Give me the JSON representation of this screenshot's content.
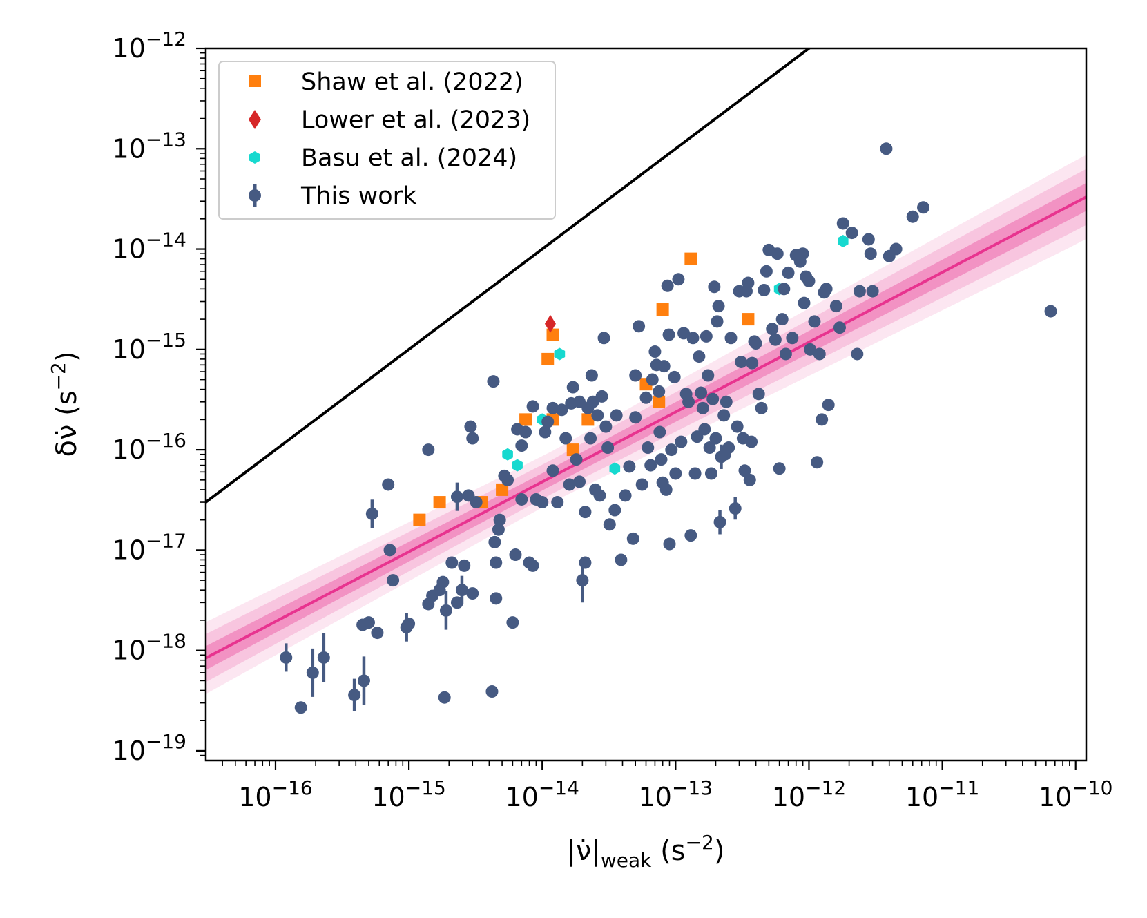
{
  "chart_data": {
    "type": "scatter",
    "title": "",
    "xlabel": "|ν̇|",
    "xlabel_sub": "weak",
    "xlabel_unit": " (s",
    "ylabel": "δν̇ (s",
    "unit_exp": "−2",
    "unit_close": ")",
    "xscale": "log",
    "yscale": "log",
    "xlim": [
      3e-17,
      1.2e-10
    ],
    "ylim": [
      8e-20,
      1e-12
    ],
    "grid": false,
    "legend_placement": "upper-left",
    "x_ticks": [
      {
        "base": "10",
        "exp": "−16",
        "value": 1e-16
      },
      {
        "base": "10",
        "exp": "−15",
        "value": 1e-15
      },
      {
        "base": "10",
        "exp": "−14",
        "value": 1e-14
      },
      {
        "base": "10",
        "exp": "−13",
        "value": 1e-13
      },
      {
        "base": "10",
        "exp": "−12",
        "value": 1e-12
      },
      {
        "base": "10",
        "exp": "−11",
        "value": 1e-11
      },
      {
        "base": "10",
        "exp": "−10",
        "value": 1e-10
      }
    ],
    "y_ticks": [
      {
        "base": "10",
        "exp": "−19",
        "value": 1e-19
      },
      {
        "base": "10",
        "exp": "−18",
        "value": 1e-18
      },
      {
        "base": "10",
        "exp": "−17",
        "value": 1e-17
      },
      {
        "base": "10",
        "exp": "−16",
        "value": 1e-16
      },
      {
        "base": "10",
        "exp": "−15",
        "value": 1e-15
      },
      {
        "base": "10",
        "exp": "−14",
        "value": 1e-14
      },
      {
        "base": "10",
        "exp": "−13",
        "value": 1e-13
      },
      {
        "base": "10",
        "exp": "−12",
        "value": 1e-12
      }
    ],
    "reference_line": {
      "description": "y = x",
      "color": "#000000"
    },
    "fit_line": {
      "color": "#e8338f",
      "log_slope": 0.696,
      "log_intercept_at_x_1e-14": -16.32,
      "band_sigma_dex": 0.14
    },
    "series": [
      {
        "name": "Shaw et al. (2022)",
        "marker": "square",
        "color": "#ff7f0e",
        "points": [
          [
            1.2e-15,
            2e-17
          ],
          [
            1.7e-15,
            3e-17
          ],
          [
            3.5e-15,
            3e-17
          ],
          [
            5e-15,
            4e-17
          ],
          [
            7.5e-15,
            2e-16
          ],
          [
            1.1e-14,
            8e-16
          ],
          [
            1.2e-14,
            1.4e-15
          ],
          [
            1.2e-14,
            2e-16
          ],
          [
            1.7e-14,
            1e-16
          ],
          [
            2.2e-14,
            2e-16
          ],
          [
            6e-14,
            4.5e-16
          ],
          [
            7.5e-14,
            3e-16
          ],
          [
            8e-14,
            2.5e-15
          ],
          [
            1.3e-13,
            8e-15
          ],
          [
            3.5e-13,
            2e-15
          ]
        ]
      },
      {
        "name": "Lower et al. (2023)",
        "marker": "diamond",
        "color": "#d62728",
        "points": [
          [
            1.15e-14,
            1.8e-15
          ]
        ]
      },
      {
        "name": "Basu et al. (2024)",
        "marker": "hexagon",
        "color": "#17d9cf",
        "points": [
          [
            5.5e-15,
            9e-17
          ],
          [
            6.5e-15,
            7e-17
          ],
          [
            1e-14,
            2e-16
          ],
          [
            1.35e-14,
            9e-16
          ],
          [
            3.5e-14,
            6.5e-17
          ],
          [
            6e-13,
            4e-15
          ],
          [
            1.8e-12,
            1.2e-14
          ]
        ]
      },
      {
        "name": "This work",
        "marker": "circle",
        "color": "#465a82",
        "points": [
          [
            1.2e-16,
            8.5e-19,
            0.1
          ],
          [
            1.55e-16,
            2.7e-19,
            0
          ],
          [
            1.9e-16,
            6e-19,
            0.2
          ],
          [
            2.3e-16,
            8.5e-19,
            0.2
          ],
          [
            3.9e-16,
            3.6e-19,
            0.12
          ],
          [
            4.6e-16,
            5e-19,
            0.2
          ],
          [
            4.5e-16,
            1.8e-18,
            0
          ],
          [
            5e-16,
            1.9e-18,
            0
          ],
          [
            5.3e-16,
            2.3e-17,
            0.1
          ],
          [
            5.8e-16,
            1.5e-18,
            0
          ],
          [
            7e-16,
            4.5e-17,
            0
          ],
          [
            7.2e-16,
            1e-17,
            0
          ],
          [
            7.6e-16,
            5e-18,
            0
          ],
          [
            9.6e-16,
            1.7e-18,
            0.1
          ],
          [
            1e-15,
            1.85e-18,
            0
          ],
          [
            1.4e-15,
            1e-16,
            0
          ],
          [
            1.4e-15,
            2.9e-18,
            0
          ],
          [
            1.5e-15,
            3.5e-18,
            0
          ],
          [
            1.7e-15,
            4e-18,
            0
          ],
          [
            1.8e-15,
            4.8e-18,
            0
          ],
          [
            1.9e-15,
            2.5e-18,
            0.15
          ],
          [
            1.85e-15,
            3.4e-19,
            0
          ],
          [
            2.1e-15,
            7.5e-18,
            0
          ],
          [
            2.3e-15,
            3e-18,
            0
          ],
          [
            2.5e-15,
            4e-18,
            0.1
          ],
          [
            2.6e-15,
            7e-18,
            0
          ],
          [
            2.3e-15,
            3.4e-17,
            0.1
          ],
          [
            2.8e-15,
            3.5e-17,
            0
          ],
          [
            2.9e-15,
            1.7e-16,
            0
          ],
          [
            3e-15,
            1.3e-16,
            0
          ],
          [
            3e-15,
            3.7e-18,
            0
          ],
          [
            3.2e-15,
            3e-17,
            0
          ],
          [
            4.2e-15,
            3.9e-19,
            0
          ],
          [
            4.3e-15,
            4.8e-16,
            0
          ],
          [
            4.4e-15,
            1.2e-17,
            0
          ],
          [
            4.5e-15,
            7.5e-18,
            0
          ],
          [
            4.5e-15,
            3.3e-18,
            0
          ],
          [
            4.7e-15,
            1.6e-17,
            0
          ],
          [
            4.8e-15,
            2e-17,
            0
          ],
          [
            5.2e-15,
            5.5e-17,
            0
          ],
          [
            5.5e-15,
            5e-17,
            0
          ],
          [
            6e-15,
            1.9e-18,
            0
          ],
          [
            6.3e-15,
            9e-18,
            0
          ],
          [
            6.5e-15,
            1.6e-16,
            0
          ],
          [
            7e-15,
            3.2e-17,
            0
          ],
          [
            7e-15,
            1.1e-16,
            0
          ],
          [
            7.5e-15,
            1.5e-16,
            0
          ],
          [
            8e-15,
            7.5e-18,
            0
          ],
          [
            8.5e-15,
            7e-18,
            0
          ],
          [
            8.5e-15,
            2.7e-16,
            0
          ],
          [
            9e-15,
            3.2e-17,
            0
          ],
          [
            1e-14,
            3e-17,
            0
          ],
          [
            1.05e-14,
            1.5e-16,
            0
          ],
          [
            1.1e-14,
            1.9e-16,
            0
          ],
          [
            1.2e-14,
            2.6e-16,
            0
          ],
          [
            1.2e-14,
            6.2e-17,
            0
          ],
          [
            1.3e-14,
            3e-17,
            0
          ],
          [
            1.4e-14,
            2.5e-16,
            0
          ],
          [
            1.5e-14,
            1.3e-16,
            0
          ],
          [
            1.6e-14,
            4.5e-17,
            0
          ],
          [
            1.65e-14,
            2.9e-16,
            0
          ],
          [
            1.7e-14,
            4.2e-16,
            0
          ],
          [
            1.8e-14,
            8e-17,
            0
          ],
          [
            1.9e-14,
            4.8e-17,
            0
          ],
          [
            1.9e-14,
            3e-16,
            0
          ],
          [
            2e-14,
            5e-18,
            0.18
          ],
          [
            2.1e-14,
            2.4e-17,
            0
          ],
          [
            2.1e-14,
            7.5e-18,
            0
          ],
          [
            2.2e-14,
            2.6e-16,
            0
          ],
          [
            2.3e-14,
            1.3e-16,
            0
          ],
          [
            2.35e-14,
            5.5e-16,
            0
          ],
          [
            2.4e-14,
            3e-16,
            0
          ],
          [
            2.5e-14,
            4e-17,
            0
          ],
          [
            2.6e-14,
            2.2e-16,
            0
          ],
          [
            2.7e-14,
            3.5e-17,
            0
          ],
          [
            2.8e-14,
            3.4e-16,
            0
          ],
          [
            2.9e-14,
            1.3e-15,
            0
          ],
          [
            3e-14,
            1.7e-16,
            0
          ],
          [
            3.1e-14,
            1.05e-16,
            0
          ],
          [
            3.2e-14,
            1.8e-17,
            0
          ],
          [
            3.5e-14,
            2.5e-17,
            0
          ],
          [
            3.6e-14,
            2.2e-16,
            0
          ],
          [
            3.9e-14,
            8e-18,
            0
          ],
          [
            4.2e-14,
            3.5e-17,
            0
          ],
          [
            4.5e-14,
            6.8e-17,
            0
          ],
          [
            4.8e-14,
            1.3e-17,
            0
          ],
          [
            5e-14,
            5.5e-16,
            0
          ],
          [
            5e-14,
            2.1e-16,
            0
          ],
          [
            5.3e-14,
            1.7e-15,
            0
          ],
          [
            5.6e-14,
            4.5e-17,
            0
          ],
          [
            6e-14,
            3.3e-16,
            0
          ],
          [
            6.2e-14,
            1.05e-16,
            0
          ],
          [
            6.5e-14,
            7e-17,
            0
          ],
          [
            6.7e-14,
            5e-16,
            0
          ],
          [
            7e-14,
            9.5e-16,
            0
          ],
          [
            7.2e-14,
            7e-16,
            0
          ],
          [
            7.5e-14,
            3.8e-16,
            0
          ],
          [
            7.6e-14,
            1.5e-16,
            0
          ],
          [
            7.8e-14,
            8e-17,
            0
          ],
          [
            8e-14,
            4.7e-17,
            0
          ],
          [
            8.2e-14,
            6.8e-16,
            0
          ],
          [
            8.5e-14,
            4e-17,
            0
          ],
          [
            8.7e-14,
            4.3e-15,
            0
          ],
          [
            8.9e-14,
            1.4e-15,
            0
          ],
          [
            9e-14,
            1.15e-17,
            0
          ],
          [
            9.3e-14,
            1e-16,
            0
          ],
          [
            9.8e-14,
            5.3e-16,
            0
          ],
          [
            1e-13,
            5.8e-17,
            0
          ],
          [
            1.05e-13,
            5e-15,
            0
          ],
          [
            1.1e-13,
            1.2e-16,
            0
          ],
          [
            1.15e-13,
            1.45e-15,
            0
          ],
          [
            1.2e-13,
            3.6e-16,
            0
          ],
          [
            1.25e-13,
            3e-16,
            0
          ],
          [
            1.3e-13,
            1.4e-17,
            0
          ],
          [
            1.35e-13,
            1.3e-15,
            0
          ],
          [
            1.4e-13,
            5.8e-17,
            0
          ],
          [
            1.45e-13,
            1.35e-16,
            0
          ],
          [
            1.5e-13,
            8.5e-16,
            0
          ],
          [
            1.55e-13,
            3.7e-16,
            0
          ],
          [
            1.6e-13,
            2.6e-16,
            0
          ],
          [
            1.65e-13,
            1.6e-16,
            0
          ],
          [
            1.7e-13,
            1.35e-15,
            0
          ],
          [
            1.75e-13,
            5.5e-16,
            0
          ],
          [
            1.8e-13,
            1.05e-16,
            0
          ],
          [
            1.85e-13,
            5.8e-17,
            0
          ],
          [
            1.9e-13,
            3.2e-16,
            0
          ],
          [
            1.95e-13,
            4.2e-15,
            0
          ],
          [
            2e-13,
            1.3e-16,
            0
          ],
          [
            2.05e-13,
            1.9e-15,
            0
          ],
          [
            2.1e-13,
            2.7e-15,
            0
          ],
          [
            2.15e-13,
            1.9e-17,
            0.08
          ],
          [
            2.2e-13,
            8.5e-17,
            0.08
          ],
          [
            2.3e-13,
            2.2e-16,
            0
          ],
          [
            2.35e-13,
            9e-17,
            0
          ],
          [
            2.4e-13,
            3e-16,
            0
          ],
          [
            2.5e-13,
            1.05e-16,
            0
          ],
          [
            2.6e-13,
            1.3e-15,
            0
          ],
          [
            2.8e-13,
            2.6e-17,
            0.07
          ],
          [
            2.9e-13,
            1.7e-16,
            0
          ],
          [
            3e-13,
            3.8e-15,
            0
          ],
          [
            3.1e-13,
            7.5e-16,
            0
          ],
          [
            3.2e-13,
            1.3e-16,
            0
          ],
          [
            3.3e-13,
            6.2e-17,
            0
          ],
          [
            3.4e-13,
            3.8e-15,
            0
          ],
          [
            3.5e-13,
            4.6e-15,
            0
          ],
          [
            3.6e-13,
            5e-17,
            0
          ],
          [
            3.7e-13,
            1.2e-16,
            0
          ],
          [
            3.75e-13,
            7.3e-16,
            0
          ],
          [
            3.9e-13,
            1.2e-15,
            0
          ],
          [
            4e-13,
            1.15e-15,
            0
          ],
          [
            4.2e-13,
            3.6e-16,
            0
          ],
          [
            4.4e-13,
            2.6e-16,
            0
          ],
          [
            4.6e-13,
            3.9e-15,
            0
          ],
          [
            4.8e-13,
            6e-15,
            0
          ],
          [
            5e-13,
            9.8e-15,
            0
          ],
          [
            5.3e-13,
            1.6e-15,
            0
          ],
          [
            5.6e-13,
            1.25e-15,
            0
          ],
          [
            5.8e-13,
            9e-15,
            0
          ],
          [
            6e-13,
            6.5e-17,
            0
          ],
          [
            6.3e-13,
            2e-15,
            0
          ],
          [
            6.5e-13,
            4e-15,
            0
          ],
          [
            6.7e-13,
            9e-16,
            0
          ],
          [
            7e-13,
            5.8e-15,
            0
          ],
          [
            7.5e-13,
            1.3e-15,
            0
          ],
          [
            8e-13,
            8.7e-15,
            0
          ],
          [
            8.6e-13,
            7.5e-15,
            0
          ],
          [
            9e-13,
            9e-15,
            0
          ],
          [
            9.2e-13,
            2.9e-15,
            0
          ],
          [
            9.5e-13,
            5.3e-15,
            0
          ],
          [
            1e-12,
            4.8e-15,
            0
          ],
          [
            1.02e-12,
            1e-15,
            0
          ],
          [
            1.1e-12,
            1.9e-15,
            0
          ],
          [
            1.15e-12,
            7.5e-17,
            0
          ],
          [
            1.2e-12,
            9e-16,
            0
          ],
          [
            1.25e-12,
            2e-16,
            0
          ],
          [
            1.3e-12,
            3.7e-15,
            0
          ],
          [
            1.35e-12,
            4e-15,
            0
          ],
          [
            1.4e-12,
            2.8e-16,
            0
          ],
          [
            1.6e-12,
            2.7e-15,
            0
          ],
          [
            1.7e-12,
            1.65e-15,
            0
          ],
          [
            1.8e-12,
            1.8e-14,
            0
          ],
          [
            2.1e-12,
            1.45e-14,
            0
          ],
          [
            2.3e-12,
            9e-16,
            0
          ],
          [
            2.4e-12,
            3.8e-15,
            0
          ],
          [
            2.8e-12,
            1.25e-14,
            0
          ],
          [
            2.9e-12,
            9e-15,
            0
          ],
          [
            3e-12,
            3.8e-15,
            0
          ],
          [
            3.8e-12,
            1e-13,
            0
          ],
          [
            4e-12,
            8.5e-15,
            0
          ],
          [
            4.5e-12,
            1e-14,
            0
          ],
          [
            6e-12,
            2.1e-14,
            0
          ],
          [
            7.2e-12,
            2.6e-14,
            0
          ],
          [
            6.5e-11,
            2.4e-15,
            0
          ]
        ]
      }
    ]
  }
}
